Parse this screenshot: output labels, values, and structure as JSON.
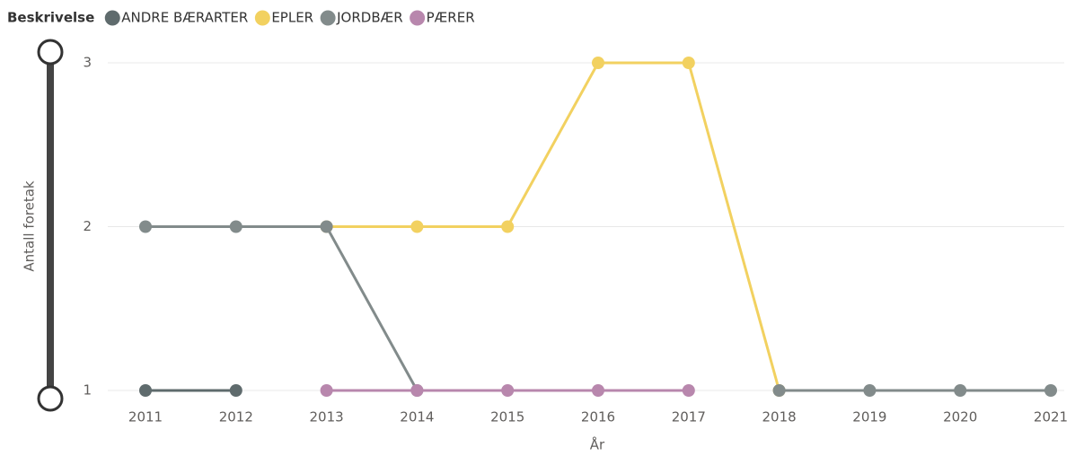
{
  "chart_data": {
    "type": "line",
    "legend_title": "Beskrivelse",
    "x_label": "År",
    "y_label": "Antall foretak",
    "categories": [
      "2011",
      "2012",
      "2013",
      "2014",
      "2015",
      "2016",
      "2017",
      "2018",
      "2019",
      "2020",
      "2021"
    ],
    "series": [
      {
        "name": "ANDRE BÆRARTER",
        "color": "#5f6b6d",
        "values": [
          1,
          1,
          null,
          null,
          null,
          null,
          null,
          null,
          null,
          null,
          null
        ]
      },
      {
        "name": "EPLER",
        "color": "#f2d160",
        "values": [
          null,
          null,
          2,
          2,
          2,
          3,
          3,
          1,
          null,
          null,
          null
        ]
      },
      {
        "name": "JORDBÆR",
        "color": "#828b8b",
        "values": [
          2,
          2,
          2,
          1,
          null,
          null,
          null,
          1,
          1,
          1,
          1
        ]
      },
      {
        "name": "PÆRER",
        "color": "#b887ad",
        "values": [
          null,
          null,
          1,
          1,
          1,
          1,
          1,
          null,
          null,
          null,
          null
        ]
      }
    ],
    "ylim": [
      1,
      3
    ],
    "yticks": [
      1,
      2,
      3
    ],
    "grid": true,
    "legend": "top-left"
  }
}
